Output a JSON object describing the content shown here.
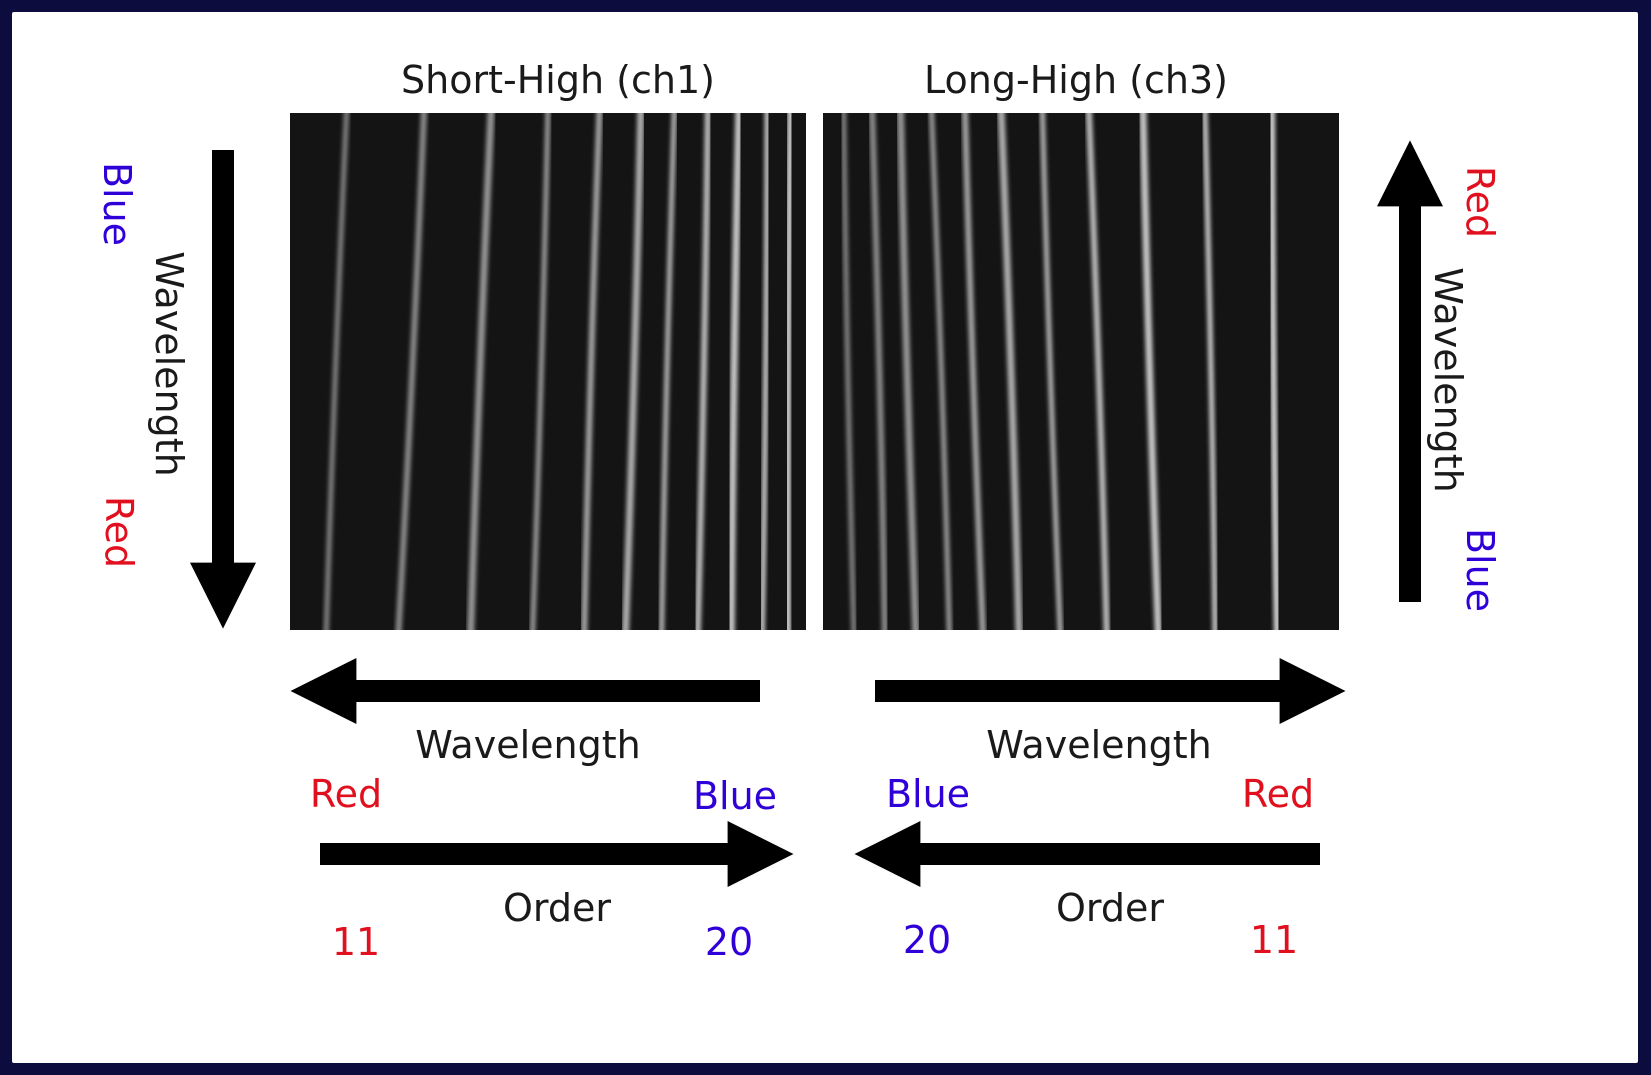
{
  "panels": {
    "left": {
      "title": "Short-High (ch1)",
      "side": {
        "top": "Blue",
        "axis": "Wavelength",
        "bottom": "Red"
      },
      "wavelength_axis": {
        "label": "Wavelength",
        "left_end": "Red",
        "right_end": "Blue"
      },
      "order_axis": {
        "label": "Order",
        "left_end": "11",
        "right_end": "20"
      }
    },
    "right": {
      "title": "Long-High (ch3)",
      "side": {
        "top": "Red",
        "axis": "Wavelength",
        "bottom": "Blue"
      },
      "wavelength_axis": {
        "label": "Wavelength",
        "left_end": "Blue",
        "right_end": "Red"
      },
      "order_axis": {
        "label": "Order",
        "left_end": "20",
        "right_end": "11"
      }
    }
  },
  "colors": {
    "red": "#e0101e",
    "blue": "#2f00d8",
    "background": "#0c0c3e"
  },
  "stripes": {
    "left_bottom": [
      0.07,
      0.21,
      0.35,
      0.47,
      0.57,
      0.65,
      0.72,
      0.79,
      0.855,
      0.915,
      0.965
    ],
    "left_top": [
      0.11,
      0.26,
      0.39,
      0.5,
      0.6,
      0.68,
      0.745,
      0.81,
      0.87,
      0.925,
      0.97
    ],
    "right_bottom": [
      0.06,
      0.12,
      0.18,
      0.245,
      0.31,
      0.38,
      0.46,
      0.55,
      0.65,
      0.76,
      0.88
    ],
    "right_top": [
      0.04,
      0.095,
      0.15,
      0.21,
      0.275,
      0.345,
      0.425,
      0.515,
      0.62,
      0.74,
      0.87
    ]
  }
}
